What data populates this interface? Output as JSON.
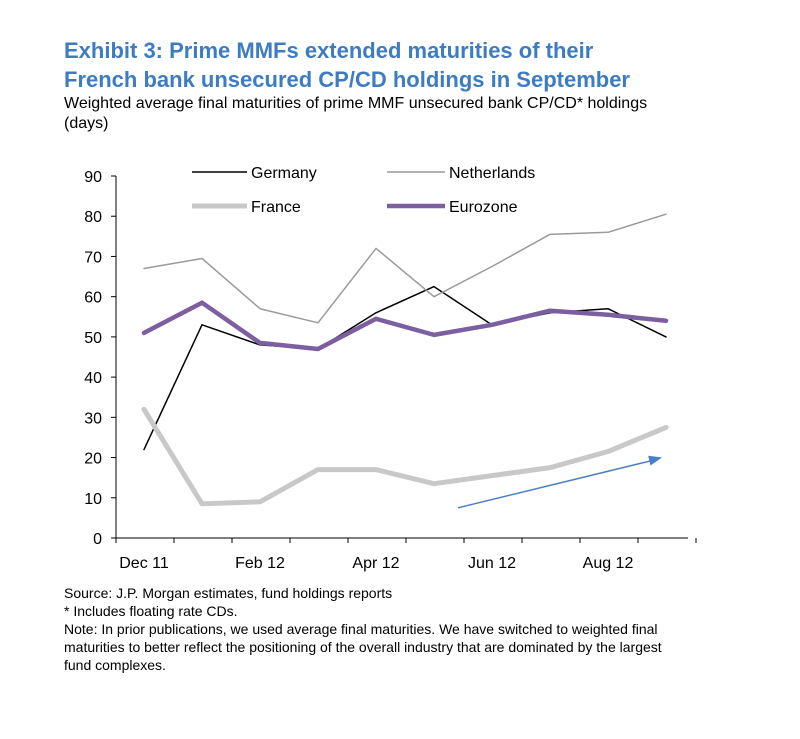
{
  "header": {
    "title_line1": "Exhibit 3: Prime MMFs extended maturities of their",
    "title_line2": "French bank unsecured CP/CD holdings in September",
    "subtitle_line1": "Weighted average final maturities of prime MMF unsecured bank CP/CD* holdings",
    "subtitle_line2": "(days)"
  },
  "footnotes": {
    "source": "Source: J.P. Morgan estimates, fund holdings reports",
    "asterisk": "* Includes floating rate CDs.",
    "note_line1": "Note: In prior publications, we used average final maturities.  We have switched to weighted final",
    "note_line2": "maturities to better reflect the positioning of the overall industry that are dominated by the largest",
    "note_line3": "fund complexes."
  },
  "colors": {
    "title": "#3d7cc2",
    "germany": "#000000",
    "netherlands": "#9a9a9a",
    "france": "#c8c8c8",
    "eurozone": "#7b5fa0",
    "arrow": "#4a7fc1"
  },
  "chart_data": {
    "type": "line",
    "x": [
      "Dec 11",
      "Jan 12",
      "Feb 12",
      "Mar 12",
      "Apr 12",
      "May 12",
      "Jun 12",
      "Jul 12",
      "Aug 12",
      "Sep 12"
    ],
    "x_tick_labels": [
      "Dec 11",
      "Feb 12",
      "Apr 12",
      "Jun 12",
      "Aug 12"
    ],
    "ylim": [
      0,
      90
    ],
    "y_ticks": [
      0,
      10,
      20,
      30,
      40,
      50,
      60,
      70,
      80,
      90
    ],
    "grid": false,
    "legend_position": "top",
    "series": [
      {
        "name": "Germany",
        "values": [
          22,
          53,
          48,
          47,
          56,
          62.5,
          53,
          56,
          57,
          50
        ]
      },
      {
        "name": "Netherlands",
        "values": [
          67,
          69.5,
          57,
          53.5,
          72,
          60,
          67.5,
          75.5,
          76,
          80.5
        ]
      },
      {
        "name": "France",
        "values": [
          32,
          8.5,
          9,
          17,
          17,
          13.5,
          15.5,
          17.5,
          21.5,
          27.5
        ]
      },
      {
        "name": "Eurozone",
        "values": [
          51,
          58.5,
          48.5,
          47,
          54.5,
          50.5,
          53,
          56.5,
          55.5,
          54
        ]
      }
    ],
    "annotations": [
      {
        "type": "arrow",
        "from": {
          "x": "Jun 12",
          "y": 7.5
        },
        "to": {
          "x": "Sep 12",
          "y": 20
        }
      }
    ]
  }
}
